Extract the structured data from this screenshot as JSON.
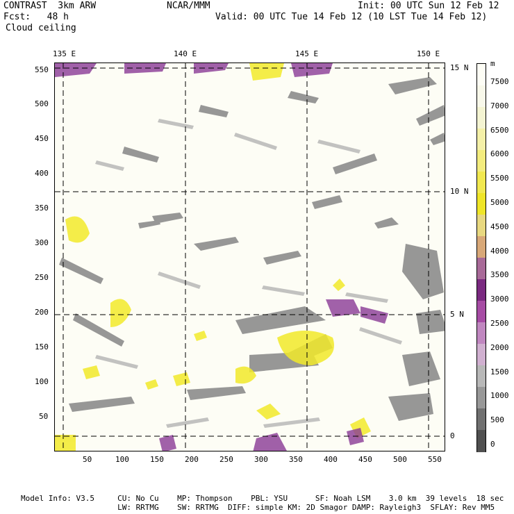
{
  "header": {
    "title": "CONTRAST  3km ARW",
    "forecast": "Fcst:   48 h",
    "field": "Cloud ceiling",
    "center": "NCAR/MMM",
    "init": "Init: 00 UTC Sun 12 Feb 12",
    "valid": "Valid: 00 UTC Tue 14 Feb 12 (10 LST Tue 14 Feb 12)"
  },
  "map": {
    "lon_labels": [
      "135 E",
      "140 E",
      "145 E",
      "150 E"
    ],
    "lat_labels": [
      "15 N",
      "10 N",
      "5 N",
      "0"
    ],
    "x_ticks": [
      "50",
      "100",
      "150",
      "200",
      "250",
      "300",
      "350",
      "400",
      "450",
      "500",
      "550"
    ],
    "y_ticks": [
      "550",
      "500",
      "450",
      "400",
      "350",
      "300",
      "250",
      "200",
      "150",
      "100",
      "50"
    ]
  },
  "colorbar": {
    "unit": "m",
    "labels": [
      "7500",
      "7000",
      "6500",
      "6000",
      "5500",
      "5000",
      "4500",
      "4000",
      "3500",
      "3000",
      "2500",
      "2000",
      "1500",
      "1000",
      "500",
      "0"
    ],
    "colors": [
      "#fdfdf5",
      "#f8f8ea",
      "#f4f4d2",
      "#f4f0a8",
      "#f3ec7e",
      "#f1e850",
      "#efe528",
      "#e8d880",
      "#d8a878",
      "#a86a98",
      "#7a2a80",
      "#a64ca4",
      "#c087c0",
      "#d0b0d0",
      "#b8b8b8",
      "#989898",
      "#707070",
      "#505050"
    ]
  },
  "footer": {
    "line1": "Model Info: V3.5     CU: No Cu    MP: Thompson    PBL: YSU      SF: Noah LSM    3.0 km  39 levels  18 sec",
    "line2": "                     LW: RRTMG    SW: RRTMG  DIFF: simple KM: 2D Smagor DAMP: Rayleigh3  SFLAY: Rev MM5"
  }
}
